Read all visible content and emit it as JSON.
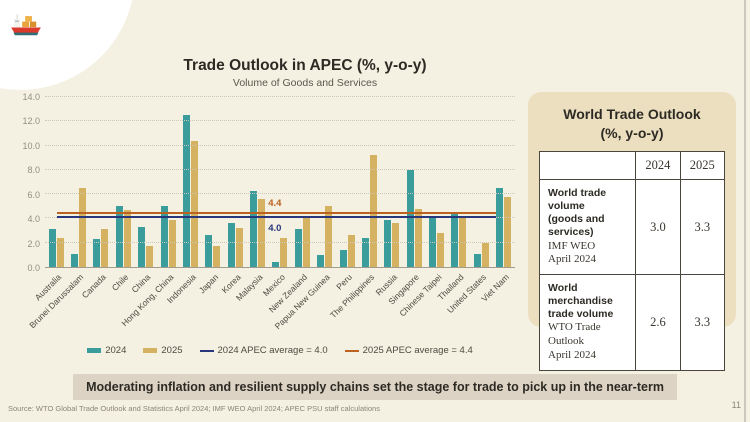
{
  "slide": {
    "banner": "Moderating inflation and resilient supply chains set the stage for trade to pick up in the near-term",
    "source": "Source: WTO Global Trade Outlook and Statistics April 2024; IMF WEO April 2024; APEC PSU staff calculations",
    "page_number": "11"
  },
  "icons": {
    "top_left": "cargo-ship-icon"
  },
  "colors": {
    "background": "#f4f0e2",
    "series_2024": "#3a9d9c",
    "series_2025": "#d4b262",
    "avg_2024_line": "#28367c",
    "avg_2025_line": "#bc6220",
    "card_background": "#ebdfc0",
    "banner_background": "#dcd3c5"
  },
  "chart_data": {
    "type": "bar",
    "title": "Trade Outlook in APEC (%, y-o-y)",
    "subtitle": "Volume of Goods and Services",
    "xlabel": "",
    "ylabel": "",
    "ylim": [
      0,
      14
    ],
    "ytick_step": 2,
    "grid": "horizontal-dotted",
    "legend_position": "bottom",
    "categories": [
      "Australia",
      "Brunei Darussalam",
      "Canada",
      "Chile",
      "China",
      "Hong Kong, China",
      "Indonesia",
      "Japan",
      "Korea",
      "Malaysia",
      "Mexico",
      "New Zealand",
      "Papua New Guinea",
      "Peru",
      "The Philippines",
      "Russia",
      "Singapore",
      "Chinese Taipei",
      "Thailand",
      "United States",
      "Viet Nam"
    ],
    "series": [
      {
        "name": "2024",
        "color": "#3a9d9c",
        "values": [
          3.1,
          1.1,
          2.3,
          5.0,
          3.3,
          5.0,
          12.5,
          2.6,
          3.6,
          6.3,
          0.4,
          3.1,
          1.0,
          1.4,
          2.4,
          3.9,
          8.0,
          4.2,
          4.5,
          1.1,
          6.5
        ]
      },
      {
        "name": "2025",
        "color": "#d4b262",
        "values": [
          2.4,
          6.5,
          3.1,
          4.7,
          1.7,
          3.9,
          10.4,
          1.7,
          3.2,
          5.6,
          2.4,
          4.0,
          5.0,
          2.6,
          9.2,
          3.6,
          4.8,
          2.8,
          4.2,
          2.0,
          5.8
        ]
      }
    ],
    "reference_lines": [
      {
        "value": 4.4,
        "value_label": "4.4",
        "color": "#bc6220",
        "legend_label": "2025 APEC average = 4.4",
        "label_position": "above"
      },
      {
        "value": 4.0,
        "value_label": "4.0",
        "color": "#28367c",
        "legend_label": "2024 APEC average = 4.0",
        "label_position": "below"
      }
    ],
    "legend_order": [
      "2024",
      "2025",
      "2024 APEC average = 4.0",
      "2025 APEC average = 4.4"
    ]
  },
  "panel": {
    "title_line1": "World Trade Outlook",
    "title_line2": "(%, y-o-y)",
    "table": {
      "col_headers": [
        "2024",
        "2025"
      ],
      "rows": [
        {
          "bold": [
            "World trade volume",
            "(goods and services)"
          ],
          "serif": [
            "IMF WEO",
            "April 2024"
          ],
          "values": [
            "3.0",
            "3.3"
          ]
        },
        {
          "bold": [
            "World merchandise",
            "trade volume"
          ],
          "serif": [
            "WTO Trade Outlook",
            "April 2024"
          ],
          "values": [
            "2.6",
            "3.3"
          ]
        }
      ]
    }
  }
}
